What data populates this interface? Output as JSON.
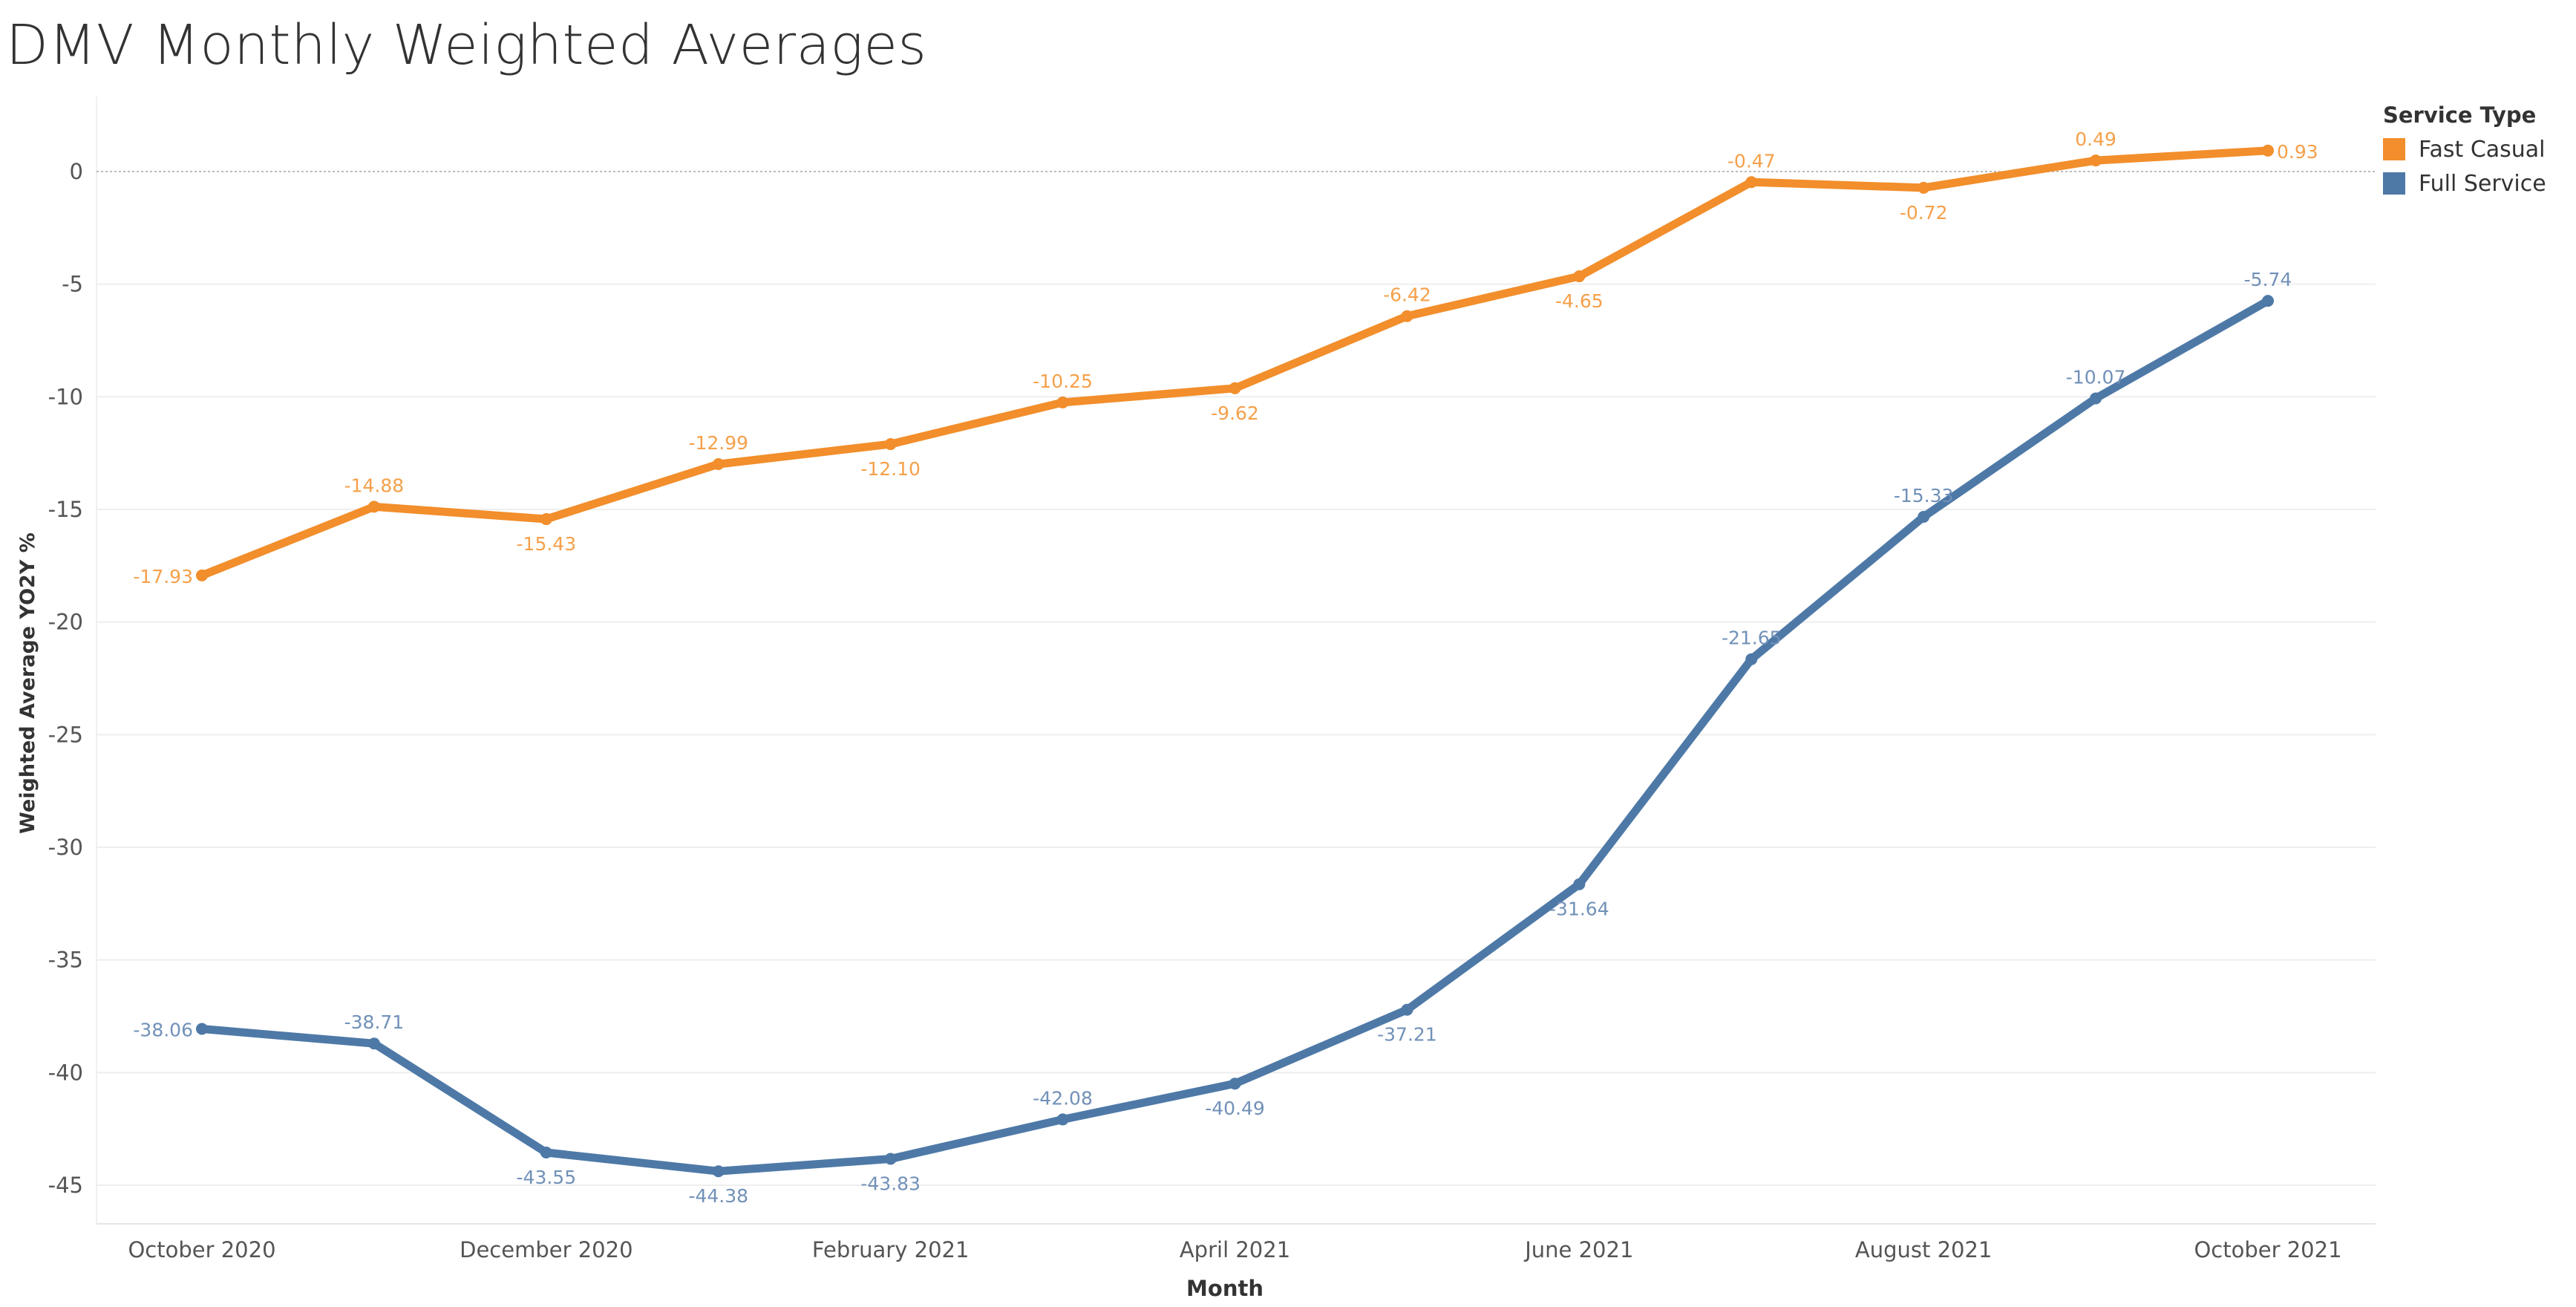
{
  "title": "DMV Monthly Weighted Averages",
  "chart_data": {
    "type": "line",
    "title": "DMV Monthly Weighted Averages",
    "xlabel": "Month",
    "ylabel": "Weighted Average YO2Y %",
    "x": [
      "October 2020",
      "November 2020",
      "December 2020",
      "January 2021",
      "February 2021",
      "March 2021",
      "April 2021",
      "May 2021",
      "June 2021",
      "July 2021",
      "August 2021",
      "September 2021",
      "October 2021"
    ],
    "x_tick_labels": [
      "October 2020",
      "December 2020",
      "February 2021",
      "April 2021",
      "June 2021",
      "August 2021",
      "October 2021"
    ],
    "y_ticks": [
      0,
      -5,
      -10,
      -15,
      -20,
      -25,
      -30,
      -35,
      -40,
      -45
    ],
    "ylim": [
      -47,
      2.5
    ],
    "grid": true,
    "zero_line": true,
    "series": [
      {
        "name": "Fast Casual",
        "color": "#f28e2b",
        "values": [
          -17.93,
          -14.88,
          -15.43,
          -12.99,
          -12.1,
          -10.25,
          -9.62,
          -6.42,
          -4.65,
          -0.47,
          -0.72,
          0.49,
          0.93
        ],
        "labels": [
          "-17.93",
          "-14.88",
          "-15.43",
          "-12.99",
          "-12.10",
          "-10.25",
          "-9.62",
          "-6.42",
          "-4.65",
          "-0.47",
          "-0.72",
          "0.49",
          "0.93"
        ],
        "label_positions": [
          "left",
          "above",
          "below",
          "above",
          "below",
          "above",
          "below",
          "above",
          "below",
          "above",
          "below",
          "above",
          "right"
        ]
      },
      {
        "name": "Full Service",
        "color": "#4e79a7",
        "values": [
          -38.06,
          -38.71,
          -43.55,
          -44.38,
          -43.83,
          -42.08,
          -40.49,
          -37.21,
          -31.64,
          -21.65,
          -15.33,
          -10.07,
          -5.74
        ],
        "labels": [
          "-38.06",
          "-38.71",
          "-43.55",
          "-44.38",
          "-43.83",
          "-42.08",
          "-40.49",
          "-37.21",
          "-31.64",
          "-21.65",
          "-15.33",
          "-10.07",
          "-5.74"
        ],
        "label_positions": [
          "left",
          "above",
          "below",
          "below",
          "below",
          "above",
          "below",
          "below",
          "below",
          "above",
          "above",
          "above",
          "above"
        ]
      }
    ],
    "legend": {
      "title": "Service Type",
      "position": "top-right"
    }
  },
  "colors": {
    "fast_casual": "#f28e2b",
    "full_service": "#4e79a7",
    "fast_casual_label": "#f5a04a",
    "full_service_label": "#7191b8",
    "axis_text": "#555555",
    "grid": "#eeeeee",
    "zero_line": "#bbbbbb"
  }
}
